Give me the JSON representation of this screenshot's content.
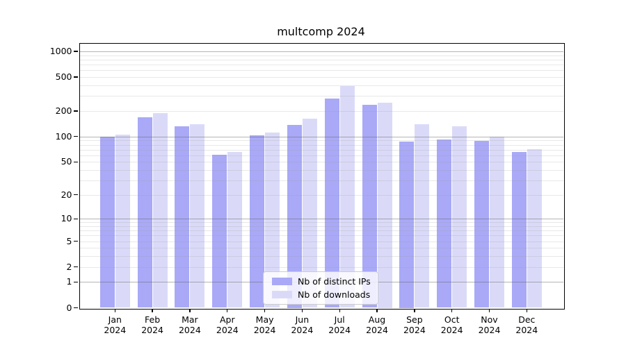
{
  "chart_data": {
    "type": "bar",
    "title": "multcomp 2024",
    "year": "2024",
    "categories": [
      "Jan",
      "Feb",
      "Mar",
      "Apr",
      "May",
      "Jun",
      "Jul",
      "Aug",
      "Sep",
      "Oct",
      "Nov",
      "Dec"
    ],
    "series": [
      {
        "name": "Nb of distinct IPs",
        "color": "#a9a9f7",
        "values": [
          100,
          168,
          131,
          61,
          103,
          137,
          281,
          235,
          87,
          92,
          88,
          66
        ]
      },
      {
        "name": "Nb of downloads",
        "color": "#dadaf8",
        "values": [
          105,
          189,
          140,
          65,
          111,
          162,
          389,
          250,
          139,
          131,
          100,
          71
        ]
      }
    ],
    "y_axis": {
      "scale": "log1p",
      "tick_values": [
        0,
        1,
        2,
        5,
        10,
        20,
        50,
        100,
        200,
        500,
        1000
      ],
      "tick_labels": [
        "0",
        "1",
        "2",
        "5",
        "10",
        "20",
        "50",
        "100",
        "200",
        "500",
        "1000"
      ]
    },
    "x_axis": {
      "tick_label_line2": "2024"
    },
    "legend": {
      "position": "lower center"
    },
    "grid": true
  }
}
